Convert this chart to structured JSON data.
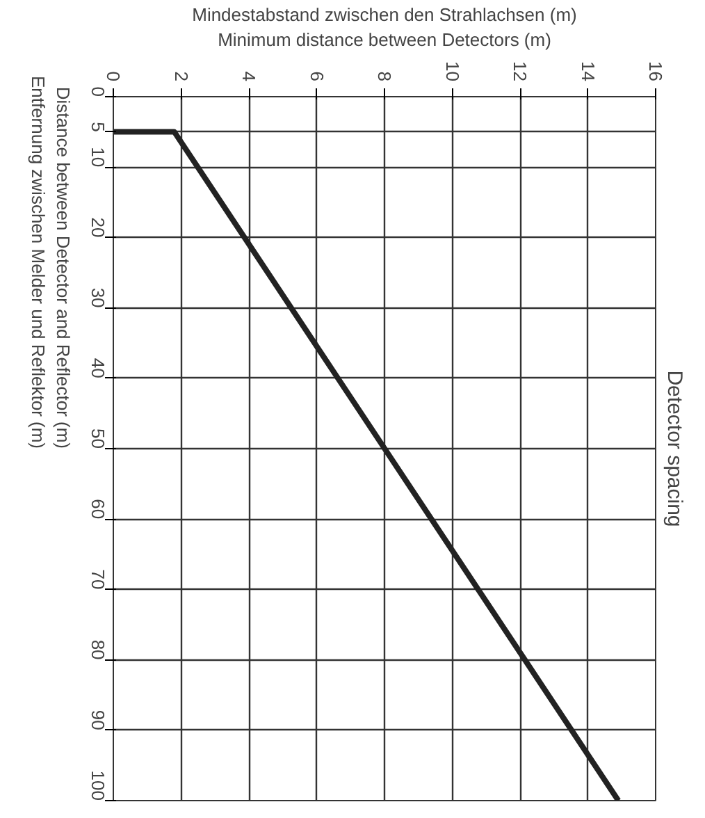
{
  "chart_data": {
    "type": "line",
    "title": "Detector spacing",
    "xlabel": "Mindestabstand zwischen den Strahlachsen (m)\nMinimum distance between Detectors (m)",
    "ylabel": "Distance between Detector and Reflector (m)\nEntfernung zwischen Melder und Reflektor (m)",
    "x": [
      0,
      1.8,
      14.9
    ],
    "series": [
      {
        "color": "#222222",
        "values": [
          5,
          5,
          100
        ]
      }
    ],
    "xlim": [
      0,
      16
    ],
    "xticks": [
      0,
      2,
      4,
      6,
      8,
      10,
      12,
      14,
      16
    ],
    "ylim": [
      100,
      0
    ],
    "yticks": [
      0,
      5,
      10,
      20,
      30,
      40,
      50,
      60,
      70,
      80,
      90,
      100
    ],
    "grid": true,
    "marker": "none",
    "line_style": "solid"
  }
}
